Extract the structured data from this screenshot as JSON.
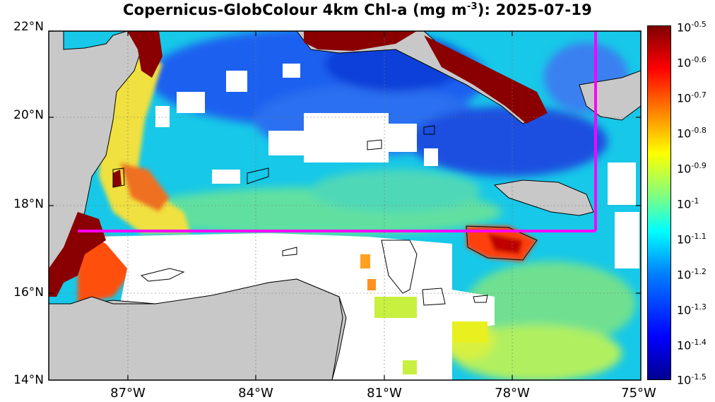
{
  "title": {
    "prefix": "Copernicus-GlobColour 4km Chl-a (mg m",
    "exponent": "-3",
    "suffix": "): 2025-07-19"
  },
  "lat_labels": [
    "22°N",
    "20°N",
    "18°N",
    "16°N",
    "14°N"
  ],
  "lon_labels": [
    "87°W",
    "84°W",
    "81°W",
    "78°W",
    "75°W"
  ],
  "colorbar": {
    "base": "10",
    "exponents": [
      "-0.5",
      "-0.6",
      "-0.7",
      "-0.8",
      "-0.9",
      "-1",
      "-1.1",
      "-1.2",
      "-1.3",
      "-1.4",
      "-1.5"
    ],
    "colors": [
      "#800000",
      "#ff0000",
      "#ff8000",
      "#ffff00",
      "#80ff80",
      "#00ffff",
      "#0080ff",
      "#0000ff",
      "#00008f"
    ]
  },
  "colors": {
    "land": "#c8c8c8",
    "nodata": "#ffffff",
    "box": "#ff00ff"
  }
}
